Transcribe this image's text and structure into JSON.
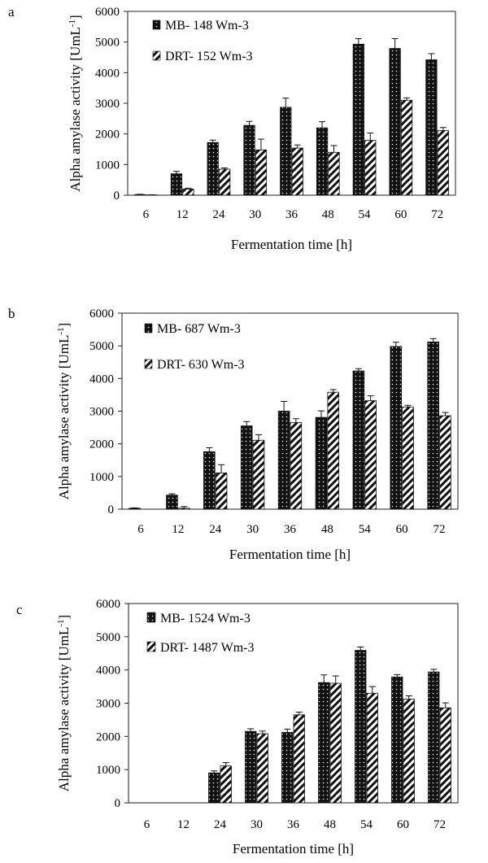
{
  "chart_data": [
    {
      "type": "bar",
      "panel_label": "a",
      "categories": [
        "6",
        "12",
        "24",
        "30",
        "36",
        "48",
        "54",
        "60",
        "72"
      ],
      "xlabel": "Fermentation time [h]",
      "ylabel_main": "Alpha amylase activity [UmL",
      "ylabel_sup": "-1",
      "ylabel_end": "]",
      "ylim": [
        0,
        6000
      ],
      "yticks": [
        "0",
        "1000",
        "2000",
        "3000",
        "4000",
        "5000",
        "6000"
      ],
      "legend_position": "top-left",
      "series": [
        {
          "name": "MB- 148 Wm-3",
          "values": [
            20,
            700,
            1720,
            2280,
            2870,
            2200,
            4930,
            4790,
            4420
          ],
          "errors": [
            10,
            80,
            80,
            130,
            300,
            200,
            180,
            320,
            200
          ]
        },
        {
          "name": "DRT- 152 Wm-3",
          "values": [
            10,
            200,
            850,
            1480,
            1540,
            1400,
            1790,
            3100,
            2110
          ],
          "errors": [
            5,
            30,
            40,
            350,
            100,
            220,
            240,
            80,
            100
          ]
        }
      ]
    },
    {
      "type": "bar",
      "panel_label": "b",
      "categories": [
        "6",
        "12",
        "24",
        "30",
        "36",
        "48",
        "54",
        "60",
        "72"
      ],
      "xlabel": "Fermentation time [h]",
      "ylabel_main": "Alpha amylase activity [UmL",
      "ylabel_sup": "-1",
      "ylabel_end": "]",
      "ylim": [
        0,
        6000
      ],
      "yticks": [
        "0",
        "1000",
        "2000",
        "3000",
        "4000",
        "5000",
        "6000"
      ],
      "legend_position": "top-left",
      "series": [
        {
          "name": "MB- 687 Wm-3",
          "values": [
            30,
            430,
            1760,
            2550,
            3000,
            2810,
            4230,
            4980,
            5120
          ],
          "errors": [
            10,
            40,
            120,
            130,
            300,
            200,
            70,
            130,
            100
          ]
        },
        {
          "name": "DRT- 630 Wm-3",
          "values": [
            0,
            30,
            1110,
            2110,
            2650,
            3580,
            3320,
            3130,
            2860
          ],
          "errors": [
            0,
            50,
            250,
            170,
            120,
            80,
            150,
            50,
            100
          ]
        }
      ]
    },
    {
      "type": "bar",
      "panel_label": "c",
      "categories": [
        "6",
        "12",
        "24",
        "30",
        "36",
        "48",
        "54",
        "60",
        "72"
      ],
      "xlabel": "Fermentation time [h]",
      "ylabel_main": "Alpha amylase activity [UmL",
      "ylabel_sup": "-1",
      "ylabel_end": "]",
      "ylim": [
        0,
        6000
      ],
      "yticks": [
        "0",
        "1000",
        "2000",
        "3000",
        "4000",
        "5000",
        "6000"
      ],
      "legend_position": "top-left",
      "series": [
        {
          "name": "MB- 1524 Wm-3",
          "values": [
            0,
            0,
            900,
            2150,
            2120,
            3620,
            4590,
            3790,
            3940
          ],
          "errors": [
            0,
            0,
            60,
            80,
            100,
            230,
            100,
            70,
            80
          ]
        },
        {
          "name": "DRT- 1487 Wm-3",
          "values": [
            0,
            0,
            1110,
            2080,
            2650,
            3600,
            3300,
            3120,
            2860
          ],
          "errors": [
            0,
            0,
            100,
            80,
            80,
            220,
            200,
            100,
            150
          ]
        }
      ]
    }
  ]
}
